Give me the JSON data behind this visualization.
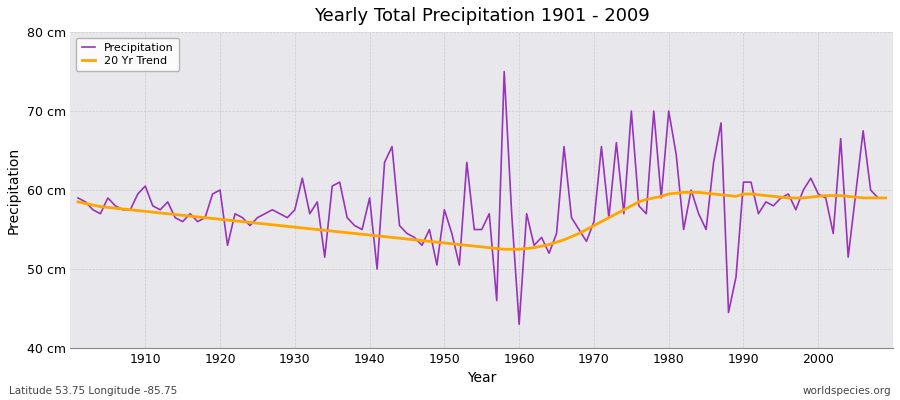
{
  "title": "Yearly Total Precipitation 1901 - 2009",
  "xlabel": "Year",
  "ylabel": "Precipitation",
  "subtitle_left": "Latitude 53.75 Longitude -85.75",
  "subtitle_right": "worldspecies.org",
  "precipitation_color": "#9933BB",
  "trend_color": "#FFA500",
  "bg_color": "#E8E8EC",
  "ylim": [
    40,
    80
  ],
  "yticks": [
    40,
    50,
    60,
    70,
    80
  ],
  "ytick_labels": [
    "40 cm",
    "50 cm",
    "60 cm",
    "70 cm",
    "80 cm"
  ],
  "years": [
    1901,
    1902,
    1903,
    1904,
    1905,
    1906,
    1907,
    1908,
    1909,
    1910,
    1911,
    1912,
    1913,
    1914,
    1915,
    1916,
    1917,
    1918,
    1919,
    1920,
    1921,
    1922,
    1923,
    1924,
    1925,
    1926,
    1927,
    1928,
    1929,
    1930,
    1931,
    1932,
    1933,
    1934,
    1935,
    1936,
    1937,
    1938,
    1939,
    1940,
    1941,
    1942,
    1943,
    1944,
    1945,
    1946,
    1947,
    1948,
    1949,
    1950,
    1951,
    1952,
    1953,
    1954,
    1955,
    1956,
    1957,
    1958,
    1959,
    1960,
    1961,
    1962,
    1963,
    1964,
    1965,
    1966,
    1967,
    1968,
    1969,
    1970,
    1971,
    1972,
    1973,
    1974,
    1975,
    1976,
    1977,
    1978,
    1979,
    1980,
    1981,
    1982,
    1983,
    1984,
    1985,
    1986,
    1987,
    1988,
    1989,
    1990,
    1991,
    1992,
    1993,
    1994,
    1995,
    1996,
    1997,
    1998,
    1999,
    2000,
    2001,
    2002,
    2003,
    2004,
    2005,
    2006,
    2007,
    2008,
    2009
  ],
  "precipitation": [
    59.0,
    58.5,
    57.5,
    57.0,
    59.0,
    58.0,
    57.5,
    57.5,
    59.5,
    60.5,
    58.0,
    57.5,
    58.5,
    56.5,
    56.0,
    57.0,
    56.0,
    56.5,
    59.5,
    60.0,
    53.0,
    57.0,
    56.5,
    55.5,
    56.5,
    57.0,
    57.5,
    57.0,
    56.5,
    57.5,
    61.5,
    57.0,
    58.5,
    51.5,
    60.5,
    61.0,
    56.5,
    55.5,
    55.0,
    59.0,
    50.0,
    63.5,
    65.5,
    55.5,
    54.5,
    54.0,
    53.0,
    55.0,
    50.5,
    57.5,
    54.5,
    50.5,
    63.5,
    55.0,
    55.0,
    57.0,
    46.0,
    75.0,
    57.0,
    43.0,
    57.0,
    53.0,
    54.0,
    52.0,
    54.5,
    65.5,
    56.5,
    55.0,
    53.5,
    56.0,
    65.5,
    56.5,
    66.0,
    57.0,
    70.0,
    58.0,
    57.0,
    70.0,
    59.0,
    70.0,
    64.5,
    55.0,
    60.0,
    57.0,
    55.0,
    63.5,
    68.5,
    44.5,
    49.0,
    61.0,
    61.0,
    57.0,
    58.5,
    58.0,
    59.0,
    59.5,
    57.5,
    60.0,
    61.5,
    59.5,
    59.0,
    54.5,
    66.5,
    51.5,
    59.5,
    67.5,
    60.0,
    59.0,
    59.0
  ],
  "trend": [
    58.5,
    58.3,
    58.1,
    57.9,
    57.8,
    57.7,
    57.6,
    57.5,
    57.4,
    57.3,
    57.2,
    57.1,
    57.0,
    56.9,
    56.8,
    56.7,
    56.6,
    56.5,
    56.4,
    56.3,
    56.2,
    56.1,
    56.0,
    55.9,
    55.8,
    55.7,
    55.6,
    55.5,
    55.4,
    55.3,
    55.2,
    55.1,
    55.0,
    54.9,
    54.8,
    54.7,
    54.6,
    54.5,
    54.4,
    54.3,
    54.2,
    54.1,
    54.0,
    53.9,
    53.8,
    53.7,
    53.6,
    53.5,
    53.4,
    53.3,
    53.2,
    53.1,
    53.0,
    52.9,
    52.8,
    52.7,
    52.6,
    52.5,
    52.5,
    52.5,
    52.6,
    52.7,
    52.9,
    53.1,
    53.4,
    53.7,
    54.1,
    54.5,
    55.0,
    55.5,
    56.0,
    56.5,
    57.0,
    57.5,
    58.0,
    58.5,
    58.8,
    59.0,
    59.2,
    59.5,
    59.6,
    59.7,
    59.7,
    59.7,
    59.6,
    59.5,
    59.4,
    59.3,
    59.2,
    59.5,
    59.5,
    59.4,
    59.3,
    59.2,
    59.1,
    59.0,
    59.0,
    59.0,
    59.1,
    59.2,
    59.3,
    59.3,
    59.3,
    59.2,
    59.1,
    59.0,
    59.0,
    59.0,
    59.0
  ]
}
